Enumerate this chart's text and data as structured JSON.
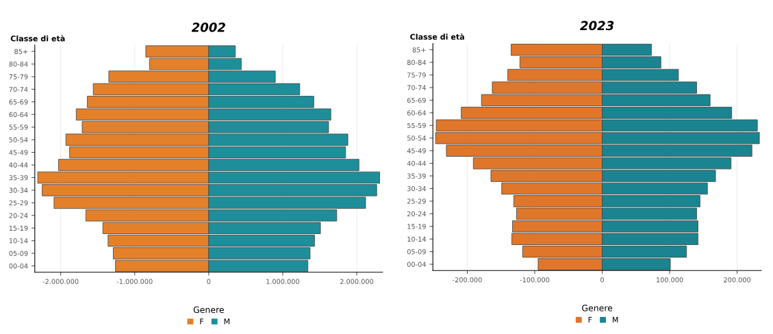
{
  "chart_data": [
    {
      "type": "bar",
      "orientation": "horizontal",
      "stacked": true,
      "title": "2002",
      "ylabel": "Classe di età",
      "legend_title": "Genere",
      "legend": "bottom",
      "grid": "x",
      "categories": [
        "85+",
        "80-84",
        "75-79",
        "70-74",
        "65-69",
        "60-64",
        "55-59",
        "50-54",
        "45-49",
        "40-44",
        "35-39",
        "30-34",
        "25-29",
        "20-24",
        "15-19",
        "10-14",
        "05-09",
        "00-04"
      ],
      "series": [
        {
          "name": "F",
          "color": "#e5802a",
          "values": [
            -850000,
            -800000,
            -1350000,
            -1560000,
            -1640000,
            -1790000,
            -1710000,
            -1930000,
            -1880000,
            -2030000,
            -2310000,
            -2250000,
            -2090000,
            -1660000,
            -1430000,
            -1360000,
            -1290000,
            -1260000
          ]
        },
        {
          "name": "M",
          "color": "#1e8f9a",
          "values": [
            360000,
            440000,
            900000,
            1230000,
            1420000,
            1650000,
            1620000,
            1880000,
            1850000,
            2030000,
            2310000,
            2270000,
            2120000,
            1730000,
            1510000,
            1430000,
            1370000,
            1340000
          ]
        }
      ],
      "xlim": [
        -2350000,
        2350000
      ],
      "xticks": [
        {
          "value": -2000000,
          "label": "-2.000.000"
        },
        {
          "value": -1000000,
          "label": "-1.000.000"
        },
        0,
        {
          "value": 1000000,
          "label": "1.000.000"
        },
        {
          "value": 2000000,
          "label": "2.000.000"
        }
      ]
    },
    {
      "type": "bar",
      "orientation": "horizontal",
      "stacked": true,
      "title": "2023",
      "ylabel": "Classe di età",
      "legend_title": "Genere",
      "legend": "bottom",
      "grid": "x",
      "categories": [
        "85+",
        "80-84",
        "75-79",
        "70-74",
        "65-69",
        "60-64",
        "55-59",
        "50-54",
        "45-49",
        "40-44",
        "35-39",
        "30-34",
        "25-29",
        "20-24",
        "15-19",
        "10-14",
        "05-09",
        "00-04"
      ],
      "series": [
        {
          "name": "F",
          "color": "#e0762a",
          "values": [
            -135000,
            -122000,
            -140000,
            -163000,
            -179000,
            -209000,
            -246000,
            -247000,
            -231000,
            -191000,
            -165000,
            -149000,
            -131000,
            -127000,
            -133000,
            -134000,
            -118000,
            -95000
          ]
        },
        {
          "name": "M",
          "color": "#1a8590",
          "values": [
            73000,
            87000,
            113000,
            140000,
            160000,
            192000,
            230000,
            233000,
            222000,
            191000,
            168000,
            156000,
            145000,
            140000,
            142000,
            142000,
            125000,
            101000
          ]
        }
      ],
      "xlim": [
        -251000,
        236000
      ],
      "xticks": [
        {
          "value": -200000,
          "label": "-200.000"
        },
        {
          "value": -100000,
          "label": "-100.000"
        },
        0,
        {
          "value": 100000,
          "label": "100.000"
        },
        {
          "value": 200000,
          "label": "200.000"
        }
      ]
    }
  ]
}
